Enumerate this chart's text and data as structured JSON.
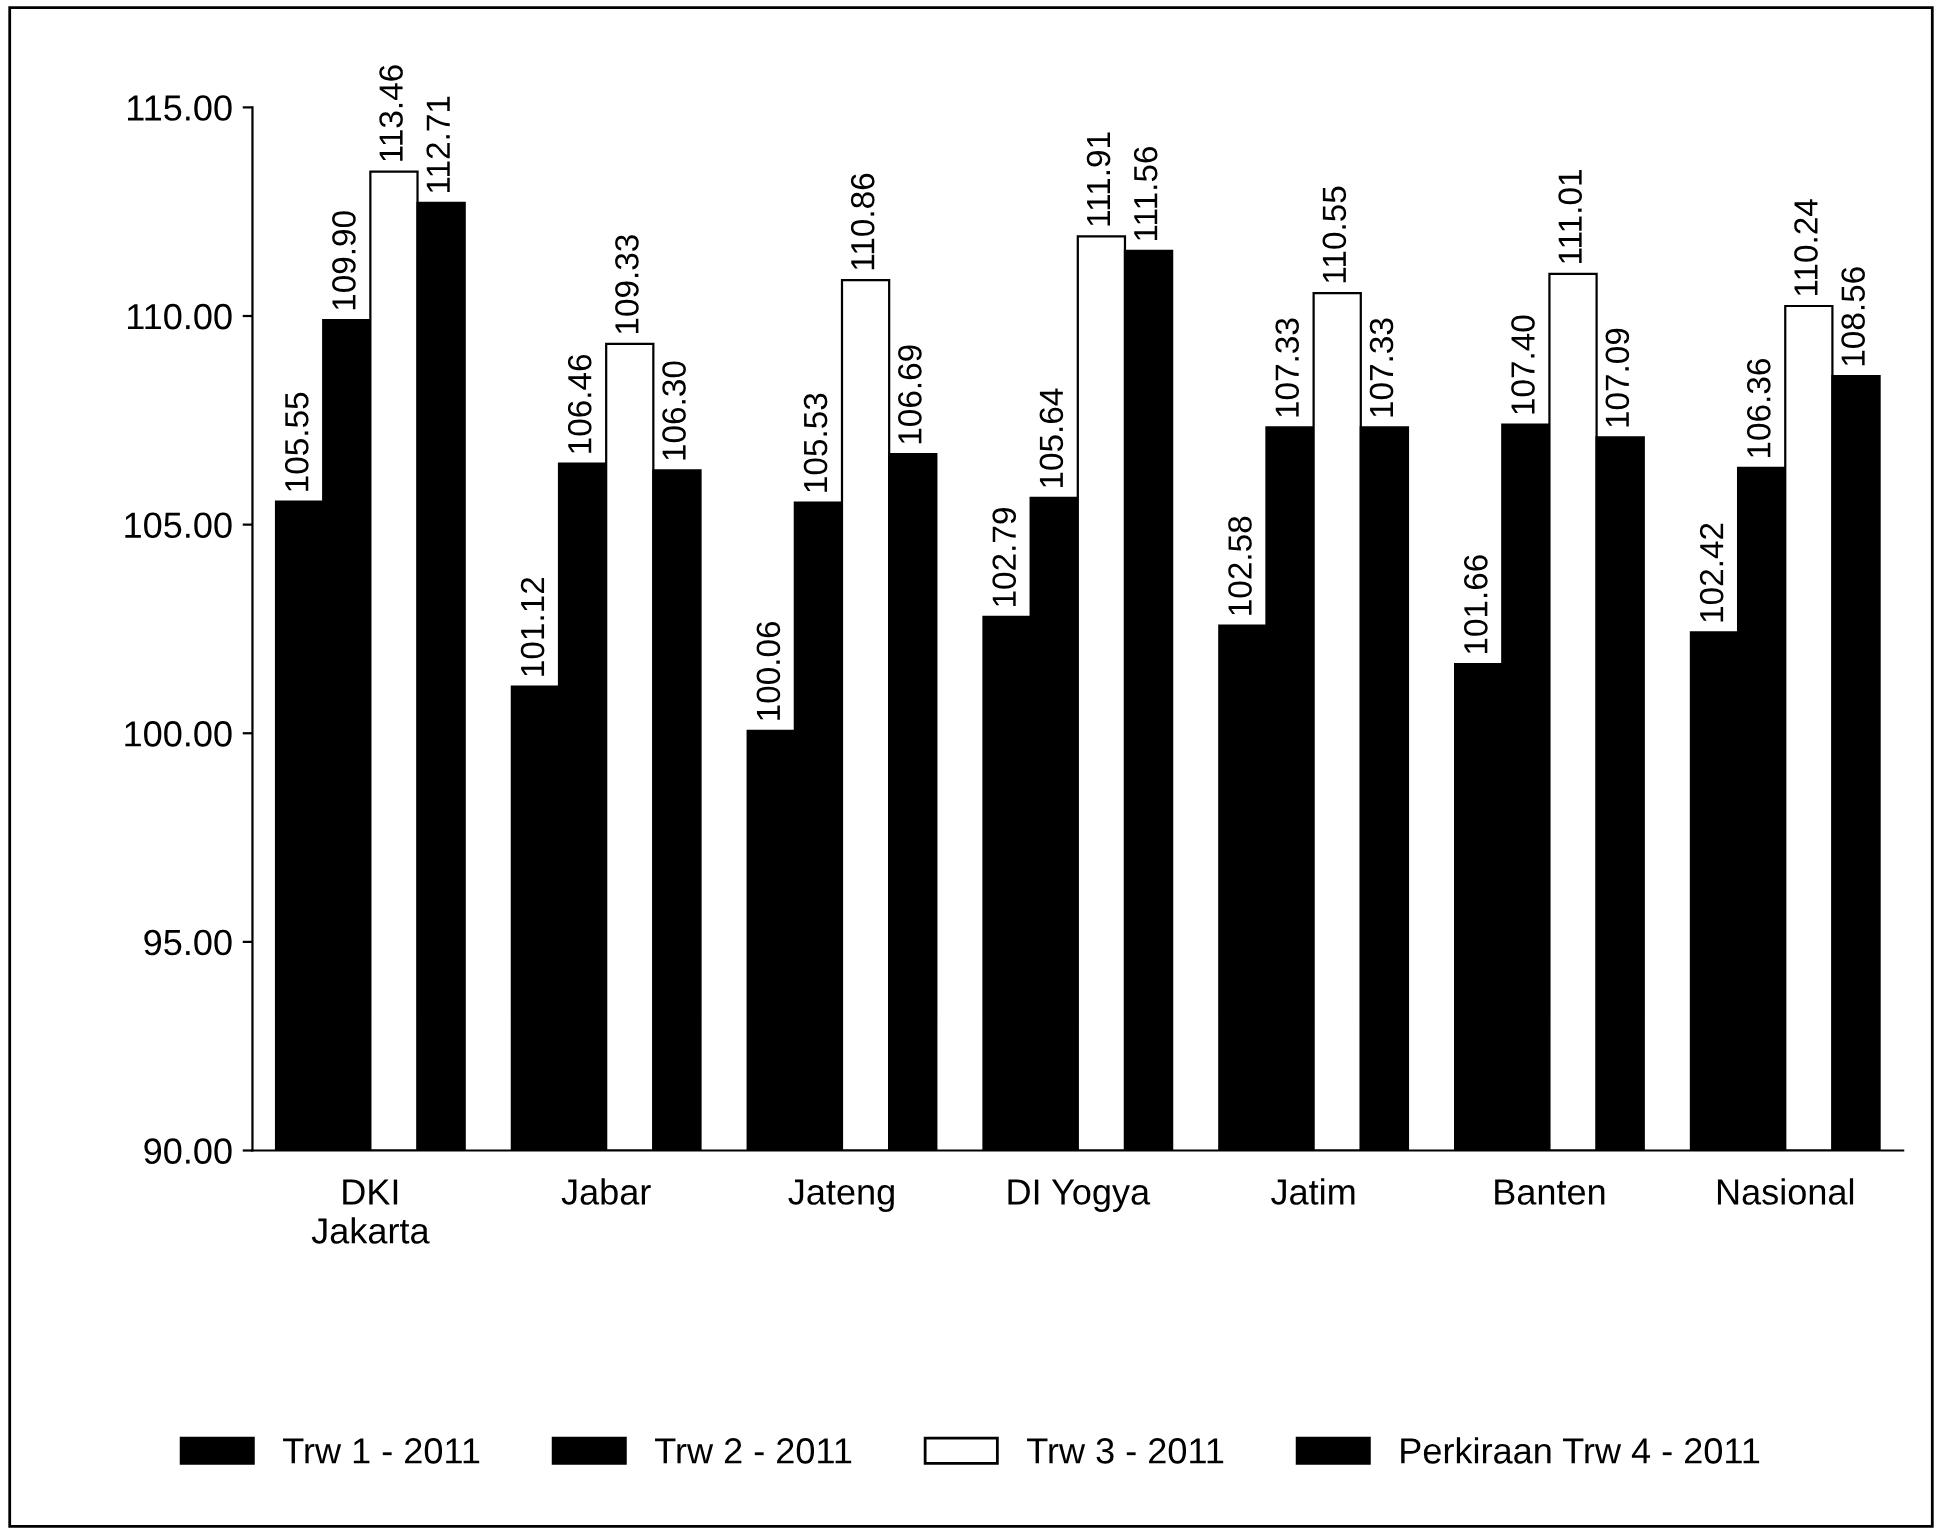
{
  "chart_data": {
    "type": "bar",
    "categories": [
      "DKI Jakarta",
      "Jabar",
      "Jateng",
      "DI Yogya",
      "Jatim",
      "Banten",
      "Nasional"
    ],
    "series": [
      {
        "name": "Trw 1 - 2011",
        "color": "#000000",
        "values": [
          105.55,
          101.12,
          100.06,
          102.79,
          102.58,
          101.66,
          102.42
        ],
        "value_labels": [
          "105.55",
          "101.12",
          "100.06",
          "102.79",
          "102.58",
          "101.66",
          "102.42"
        ]
      },
      {
        "name": "Trw 2 - 2011",
        "color": "#000000",
        "values": [
          109.9,
          106.46,
          105.53,
          105.64,
          107.33,
          107.4,
          106.36
        ],
        "value_labels": [
          "109.90",
          "106.46",
          "105.53",
          "105.64",
          "107.33",
          "107.40",
          "106.36"
        ]
      },
      {
        "name": "Trw 3 - 2011",
        "color": "#ffffff",
        "values": [
          113.46,
          109.33,
          110.86,
          111.91,
          110.55,
          111.01,
          110.24
        ],
        "value_labels": [
          "113.46",
          "109.33",
          "110.86",
          "111.91",
          "110.55",
          "111.01",
          "110.24"
        ]
      },
      {
        "name": "Perkiraan Trw 4 - 2011",
        "color": "#000000",
        "values": [
          112.71,
          106.3,
          106.69,
          111.56,
          107.33,
          107.09,
          108.56
        ],
        "value_labels": [
          "112.71",
          "106.30",
          "106.69",
          "111.56",
          "107.33",
          "107.09",
          "108.56"
        ]
      }
    ],
    "ylim": [
      90,
      115
    ],
    "yticks": [
      {
        "value": 90,
        "label": "90.00"
      },
      {
        "value": 95,
        "label": "95.00"
      },
      {
        "value": 100,
        "label": "100.00"
      },
      {
        "value": 105,
        "label": "105.00"
      },
      {
        "value": 110,
        "label": "110.00"
      },
      {
        "value": 115,
        "label": "115.00"
      }
    ],
    "grid": false,
    "legend": "bottom"
  }
}
